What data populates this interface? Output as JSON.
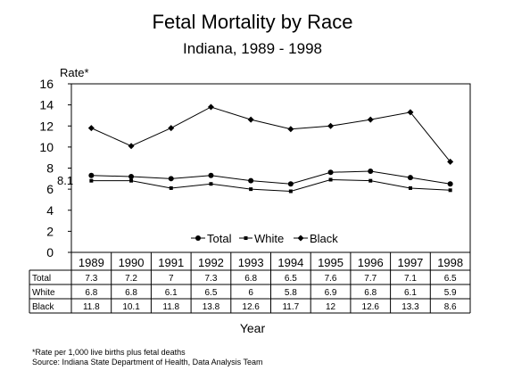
{
  "title": "Fetal Mortality by Race",
  "subtitle": "Indiana, 1989 - 1998",
  "footnotes": {
    "rate_note": "*Rate per 1,000 live births plus fetal deaths",
    "source": "Source:  Indiana State Department of Health, Data Analysis Team"
  },
  "chart_data": {
    "type": "line",
    "ylabel": "Rate*",
    "xlabel": "Year",
    "ylim": [
      0,
      16
    ],
    "yticks": [
      0,
      2,
      4,
      6,
      8,
      10,
      12,
      14,
      16
    ],
    "categories": [
      "1989",
      "1990",
      "1991",
      "1992",
      "1993",
      "1994",
      "1995",
      "1996",
      "1997",
      "1998"
    ],
    "series": [
      {
        "name": "Total",
        "marker": "circle",
        "values": [
          7.3,
          7.2,
          7,
          7.3,
          6.8,
          6.5,
          7.6,
          7.7,
          7.1,
          6.5
        ]
      },
      {
        "name": "White",
        "marker": "square",
        "values": [
          6.8,
          6.8,
          6.1,
          6.5,
          6,
          5.8,
          6.9,
          6.8,
          6.1,
          5.9
        ]
      },
      {
        "name": "Black",
        "marker": "diamond",
        "values": [
          11.8,
          10.1,
          11.8,
          13.8,
          12.6,
          11.7,
          12,
          12.6,
          13.3,
          8.6
        ]
      }
    ],
    "annotation": "8.1",
    "grid": false,
    "legend_position": "bottom-right inside plot",
    "data_table": {
      "rows": [
        {
          "label": "Total",
          "values": [
            "7.3",
            "7.2",
            "7",
            "7.3",
            "6.8",
            "6.5",
            "7.6",
            "7.7",
            "7.1",
            "6.5"
          ]
        },
        {
          "label": "White",
          "values": [
            "6.8",
            "6.8",
            "6.1",
            "6.5",
            "6",
            "5.8",
            "6.9",
            "6.8",
            "6.1",
            "5.9"
          ]
        },
        {
          "label": "Black",
          "values": [
            "11.8",
            "10.1",
            "11.8",
            "13.8",
            "12.6",
            "11.7",
            "12",
            "12.6",
            "13.3",
            "8.6"
          ]
        }
      ]
    }
  }
}
